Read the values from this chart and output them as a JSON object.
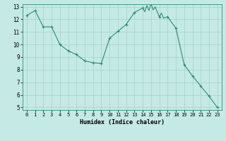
{
  "x": [
    0,
    1,
    2,
    3,
    4,
    5,
    6,
    7,
    8,
    9,
    10,
    11,
    12,
    13,
    14,
    14.25,
    14.5,
    14.75,
    15,
    15.25,
    15.5,
    15.75,
    16,
    16.25,
    16.5,
    17,
    18,
    19,
    20,
    21,
    22,
    23
  ],
  "y": [
    12.3,
    12.7,
    11.4,
    11.4,
    10.0,
    9.5,
    9.2,
    8.7,
    8.55,
    8.5,
    10.5,
    11.05,
    11.6,
    12.55,
    12.9,
    12.6,
    13.1,
    12.7,
    13.25,
    12.75,
    13.0,
    12.6,
    12.2,
    12.5,
    12.1,
    12.2,
    11.3,
    8.4,
    7.5,
    6.7,
    5.9,
    5.0
  ],
  "marker_x": [
    0,
    1,
    2,
    3,
    4,
    5,
    6,
    7,
    8,
    9,
    10,
    11,
    12,
    13,
    14,
    15,
    16,
    17,
    18,
    19,
    20,
    21,
    22,
    23
  ],
  "marker_y": [
    12.3,
    12.7,
    11.4,
    11.4,
    10.0,
    9.5,
    9.2,
    8.7,
    8.55,
    8.5,
    10.5,
    11.05,
    11.6,
    12.55,
    12.9,
    13.25,
    12.2,
    12.2,
    11.3,
    8.4,
    7.5,
    6.7,
    5.9,
    5.0
  ],
  "line_color": "#2e8b6e",
  "marker_color": "#2e8b6e",
  "bg_color": "#c5eae6",
  "grid_color": "#aad4d0",
  "xlabel": "Humidex (Indice chaleur)",
  "xlim": [
    -0.5,
    23.5
  ],
  "ylim": [
    4.8,
    13.2
  ],
  "yticks": [
    5,
    6,
    7,
    8,
    9,
    10,
    11,
    12,
    13
  ],
  "xticks": [
    0,
    1,
    2,
    3,
    4,
    5,
    6,
    7,
    8,
    9,
    10,
    11,
    12,
    13,
    14,
    15,
    16,
    17,
    18,
    19,
    20,
    21,
    22,
    23
  ]
}
